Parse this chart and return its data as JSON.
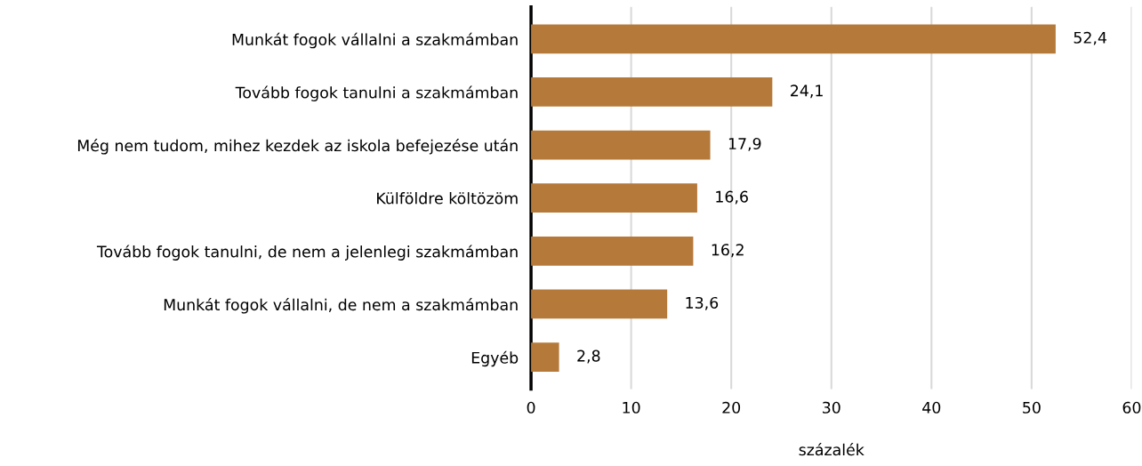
{
  "chart_data": {
    "type": "bar",
    "orientation": "horizontal",
    "xlabel": "százalék",
    "categories": [
      "Munkát fogok vállalni a szakmámban",
      "Tovább fogok tanulni a szakmámban",
      "Még nem tudom, mihez kezdek az iskola befejezése után",
      "Külföldre költözöm",
      "Tovább fogok tanulni, de nem a jelenlegi szakmámban",
      "Munkát fogok vállalni, de nem a szakmámban",
      "Egyéb"
    ],
    "values": [
      52.4,
      24.1,
      17.9,
      16.6,
      16.2,
      13.6,
      2.8
    ],
    "value_labels": [
      "52,4",
      "24,1",
      "17,9",
      "16,6",
      "16,2",
      "13,6",
      "2,8"
    ],
    "color": "#b5793a",
    "xlim": [
      0,
      60
    ],
    "xticks": [
      0,
      10,
      20,
      30,
      40,
      50,
      60
    ],
    "grid": "x",
    "legend": false
  }
}
